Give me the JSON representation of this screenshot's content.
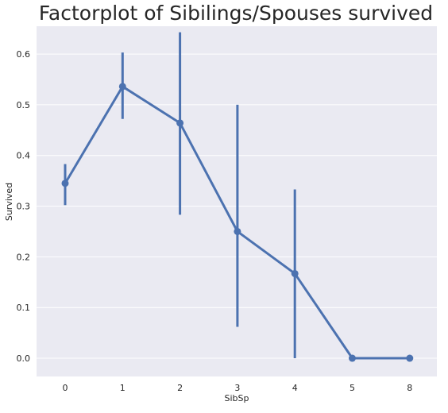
{
  "chart_data": {
    "type": "line",
    "title": "Factorplot of Sibilings/Spouses survived",
    "xlabel": "SibSp",
    "ylabel": "Survived",
    "categories": [
      "0",
      "1",
      "2",
      "3",
      "4",
      "5",
      "8"
    ],
    "series": [
      {
        "values": [
          0.345,
          0.536,
          0.464,
          0.25,
          0.167,
          0.0,
          0.0
        ],
        "ci_low": [
          0.302,
          0.472,
          0.283,
          0.062,
          0.0,
          0.0,
          0.0
        ],
        "ci_high": [
          0.383,
          0.603,
          0.643,
          0.5,
          0.333,
          0.0,
          0.0
        ]
      }
    ],
    "ylim": [
      -0.036,
      0.655
    ],
    "yticks": [
      0.0,
      0.1,
      0.2,
      0.3,
      0.4,
      0.5,
      0.6
    ],
    "ytick_labels": [
      "0.0",
      "0.1",
      "0.2",
      "0.3",
      "0.4",
      "0.5",
      "0.6"
    ],
    "grid": true,
    "legend": "none",
    "colors": {
      "line": "#4c72b0",
      "background": "#eaeaf2",
      "grid": "#ffffff"
    }
  }
}
